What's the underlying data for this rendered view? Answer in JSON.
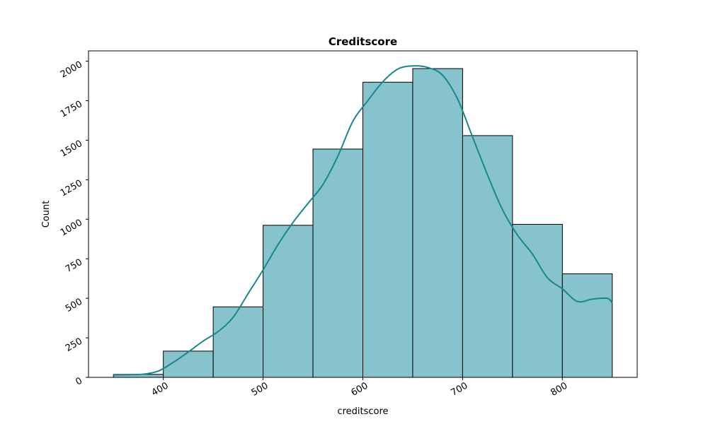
{
  "chart_data": {
    "type": "bar",
    "title": "Creditscore",
    "xlabel": "creditscore",
    "ylabel": "Count",
    "xlim": [
      325,
      875
    ],
    "ylim": [
      0,
      2065
    ],
    "x_ticks": [
      400,
      500,
      600,
      700,
      800
    ],
    "y_ticks": [
      0,
      250,
      500,
      750,
      1000,
      1250,
      1500,
      1750,
      2000
    ],
    "bins": [
      {
        "start": 350,
        "end": 400,
        "count": 19
      },
      {
        "start": 400,
        "end": 450,
        "count": 166
      },
      {
        "start": 450,
        "end": 500,
        "count": 446
      },
      {
        "start": 500,
        "end": 550,
        "count": 962
      },
      {
        "start": 550,
        "end": 600,
        "count": 1444
      },
      {
        "start": 600,
        "end": 650,
        "count": 1867
      },
      {
        "start": 650,
        "end": 700,
        "count": 1953
      },
      {
        "start": 700,
        "end": 750,
        "count": 1529
      },
      {
        "start": 750,
        "end": 800,
        "count": 968
      },
      {
        "start": 800,
        "end": 850,
        "count": 655
      }
    ],
    "kde": {
      "x": [
        350,
        365,
        380,
        395,
        410,
        425,
        440,
        455,
        470,
        485,
        500,
        515,
        530,
        545,
        560,
        575,
        590,
        605,
        620,
        635,
        650,
        665,
        680,
        695,
        710,
        725,
        740,
        755,
        770,
        785,
        800,
        815,
        830,
        845,
        850
      ],
      "y": [
        15,
        17,
        20,
        40,
        95,
        160,
        230,
        290,
        380,
        530,
        680,
        840,
        980,
        1100,
        1220,
        1400,
        1620,
        1750,
        1870,
        1950,
        1970,
        1960,
        1910,
        1760,
        1520,
        1280,
        1060,
        900,
        780,
        630,
        560,
        480,
        495,
        500,
        470
      ]
    },
    "grid": false,
    "legend": "none",
    "bar_color": "#87c3cc",
    "edge_color": "#000000",
    "kde_color": "#18878f"
  }
}
